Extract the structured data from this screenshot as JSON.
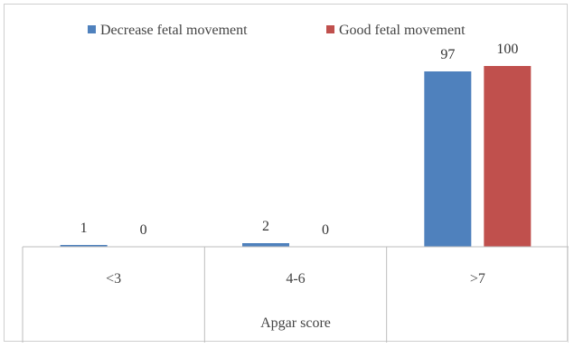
{
  "chart_data": {
    "type": "bar",
    "categories": [
      "<3",
      "4-6",
      ">7"
    ],
    "series": [
      {
        "name": "Decrease fetal movement",
        "values": [
          1,
          2,
          97
        ],
        "color": "#4f81bd"
      },
      {
        "name": "Good fetal movement",
        "values": [
          0,
          0,
          100
        ],
        "color": "#c0504d"
      }
    ],
    "data_labels": [
      [
        "1",
        "2",
        "97"
      ],
      [
        "0",
        "0",
        "100"
      ]
    ],
    "title": "",
    "xlabel": "Apgar score",
    "ylabel": "",
    "ylim": [
      0,
      100
    ],
    "grid": false,
    "legend": "top"
  }
}
